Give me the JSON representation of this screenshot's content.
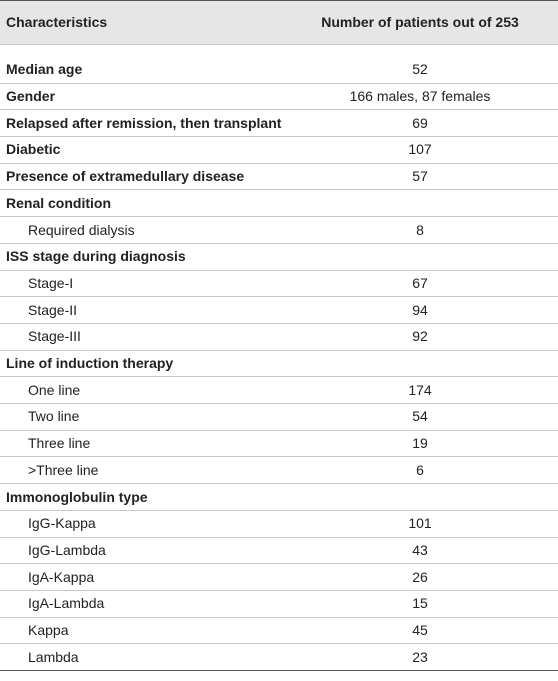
{
  "table": {
    "header": [
      "Characteristics",
      "Number of patients out of 253"
    ],
    "rows": [
      {
        "label": "Median age",
        "value": 52
      },
      {
        "label": "Gender",
        "value": "166 males, 87 females"
      },
      {
        "label": "Relapsed after remission, then transplant",
        "value": 69
      },
      {
        "label": "Diabetic",
        "value": 107
      },
      {
        "label": "Presence of extramedullary disease",
        "value": 57
      },
      {
        "label": "Renal condition",
        "rows": [
          {
            "label": "Required dialysis",
            "value": 8
          }
        ]
      },
      {
        "label": "ISS stage during diagnosis",
        "rows": [
          {
            "label": "Stage-I",
            "value": 67
          },
          {
            "label": "Stage-II",
            "value": 94
          },
          {
            "label": "Stage-III",
            "value": 92
          }
        ]
      },
      {
        "label": "Line of induction therapy",
        "rows": [
          {
            "label": "One line",
            "value": 174
          },
          {
            "label": "Two line",
            "value": 54
          },
          {
            "label": "Three line",
            "value": 19
          },
          {
            "label": ">Three line",
            "value": 6
          }
        ]
      },
      {
        "label": "Immonoglobulin type",
        "rows": [
          {
            "label": "IgG-Kappa",
            "value": 101
          },
          {
            "label": "IgG-Lambda",
            "value": 43
          },
          {
            "label": "IgA-Kappa",
            "value": 26
          },
          {
            "label": "IgA-Lambda",
            "value": 15
          },
          {
            "label": "Kappa",
            "value": 45
          },
          {
            "label": "Lambda",
            "value": 23
          }
        ]
      }
    ]
  }
}
